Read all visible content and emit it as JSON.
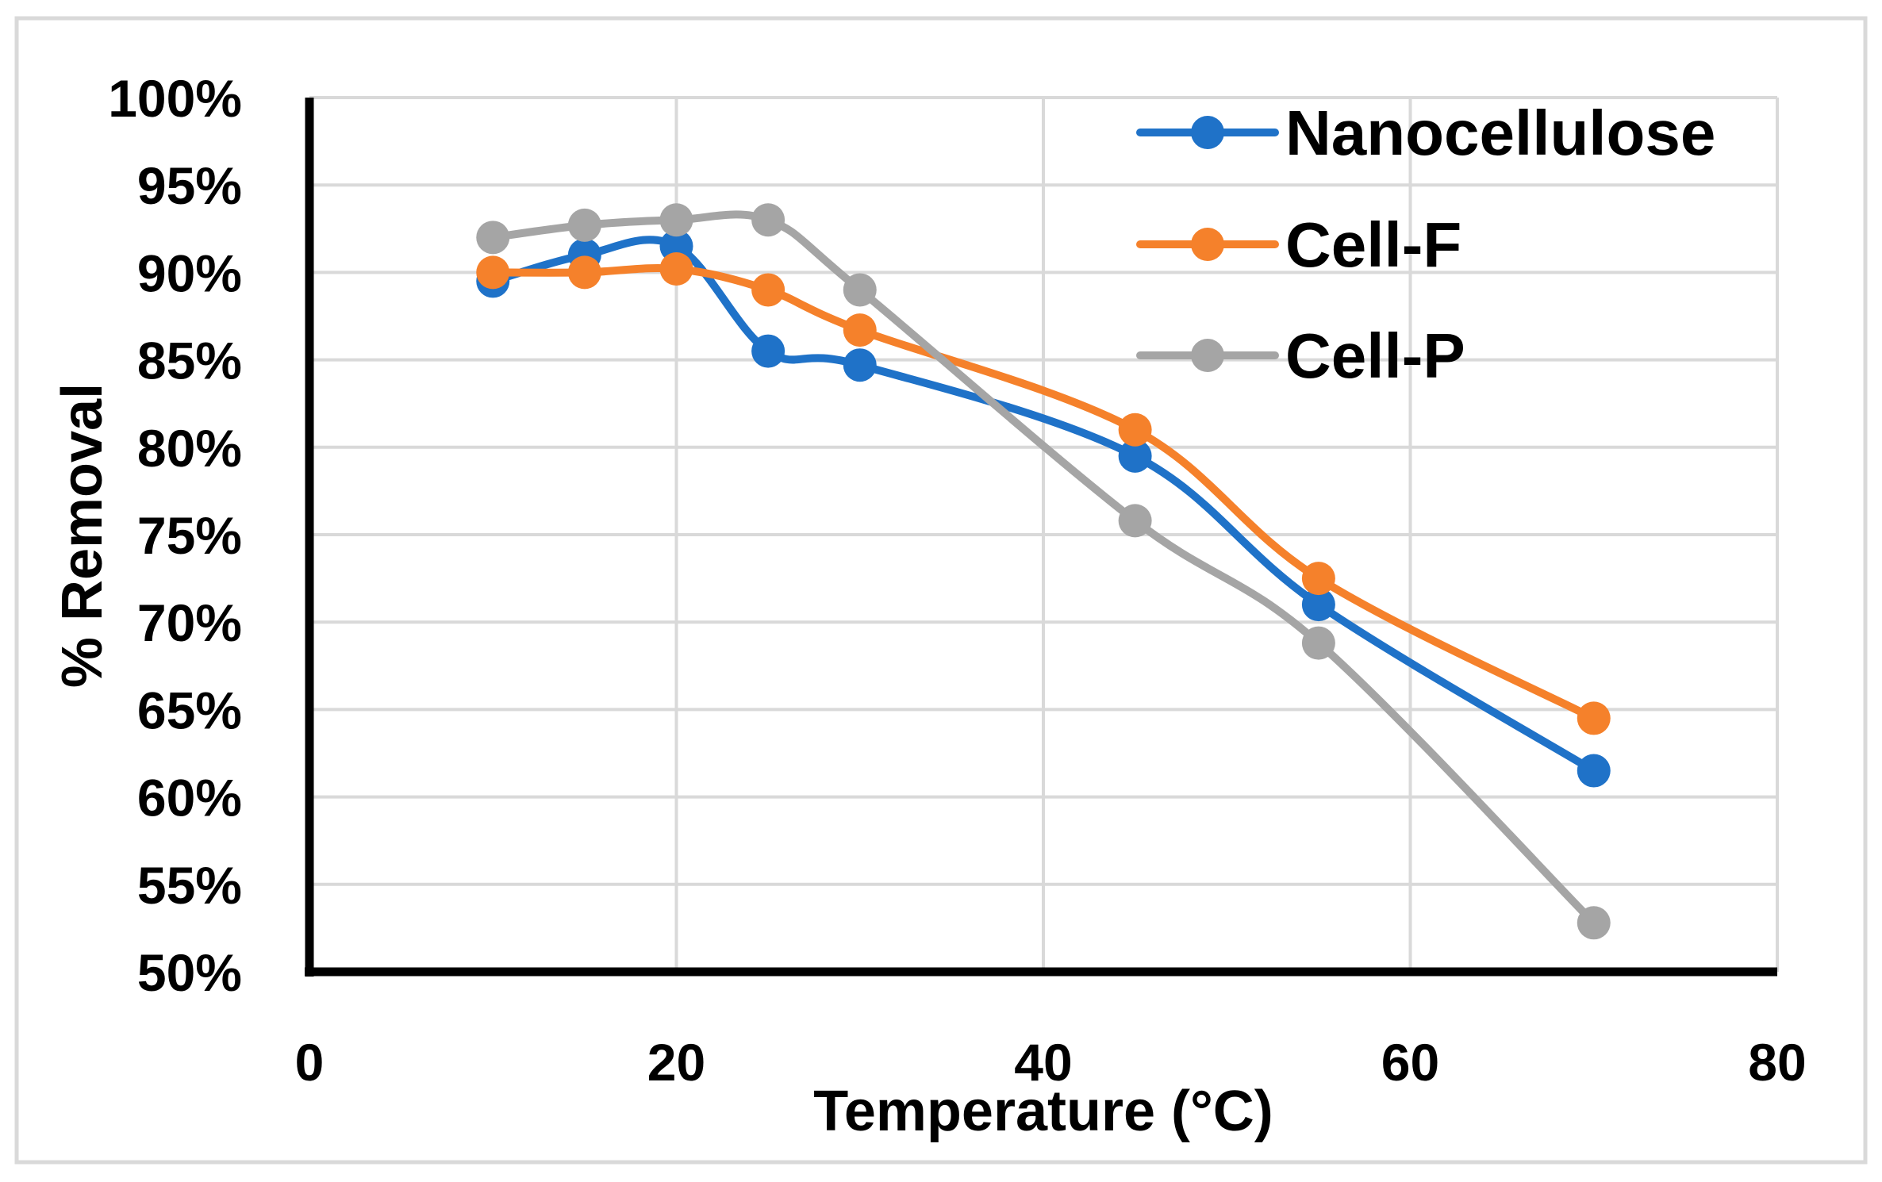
{
  "chart_data": {
    "type": "line",
    "title": "",
    "xlabel": "Temperature (°C)",
    "ylabel": "% Removal",
    "xlim": [
      0,
      80
    ],
    "ylim": [
      50,
      100
    ],
    "x_ticks": [
      0,
      20,
      40,
      60,
      80
    ],
    "x_tick_labels": [
      "0",
      "20",
      "40",
      "60",
      "80"
    ],
    "y_ticks": [
      50,
      55,
      60,
      65,
      70,
      75,
      80,
      85,
      90,
      95,
      100
    ],
    "y_tick_labels": [
      "50%",
      "55%",
      "60%",
      "65%",
      "70%",
      "75%",
      "80%",
      "85%",
      "90%",
      "95%",
      "100%"
    ],
    "grid": true,
    "legend": "top-right",
    "smooth": true,
    "series": [
      {
        "name": "Nanocellulose",
        "color": "#1F72C8",
        "x": [
          10,
          15,
          20,
          25,
          30,
          45,
          55,
          70
        ],
        "y": [
          89.5,
          91.0,
          91.5,
          85.5,
          84.7,
          79.5,
          71.0,
          61.5
        ]
      },
      {
        "name": "Cell-F",
        "color": "#F5812B",
        "x": [
          10,
          15,
          20,
          25,
          30,
          45,
          55,
          70
        ],
        "y": [
          90.0,
          90.0,
          90.2,
          89.0,
          86.7,
          81.0,
          72.5,
          64.5
        ]
      },
      {
        "name": "Cell-P",
        "color": "#A5A5A5",
        "x": [
          10,
          15,
          20,
          25,
          30,
          45,
          55,
          70
        ],
        "y": [
          92.0,
          92.7,
          93.0,
          93.0,
          89.0,
          75.8,
          68.8,
          52.8
        ]
      }
    ]
  }
}
